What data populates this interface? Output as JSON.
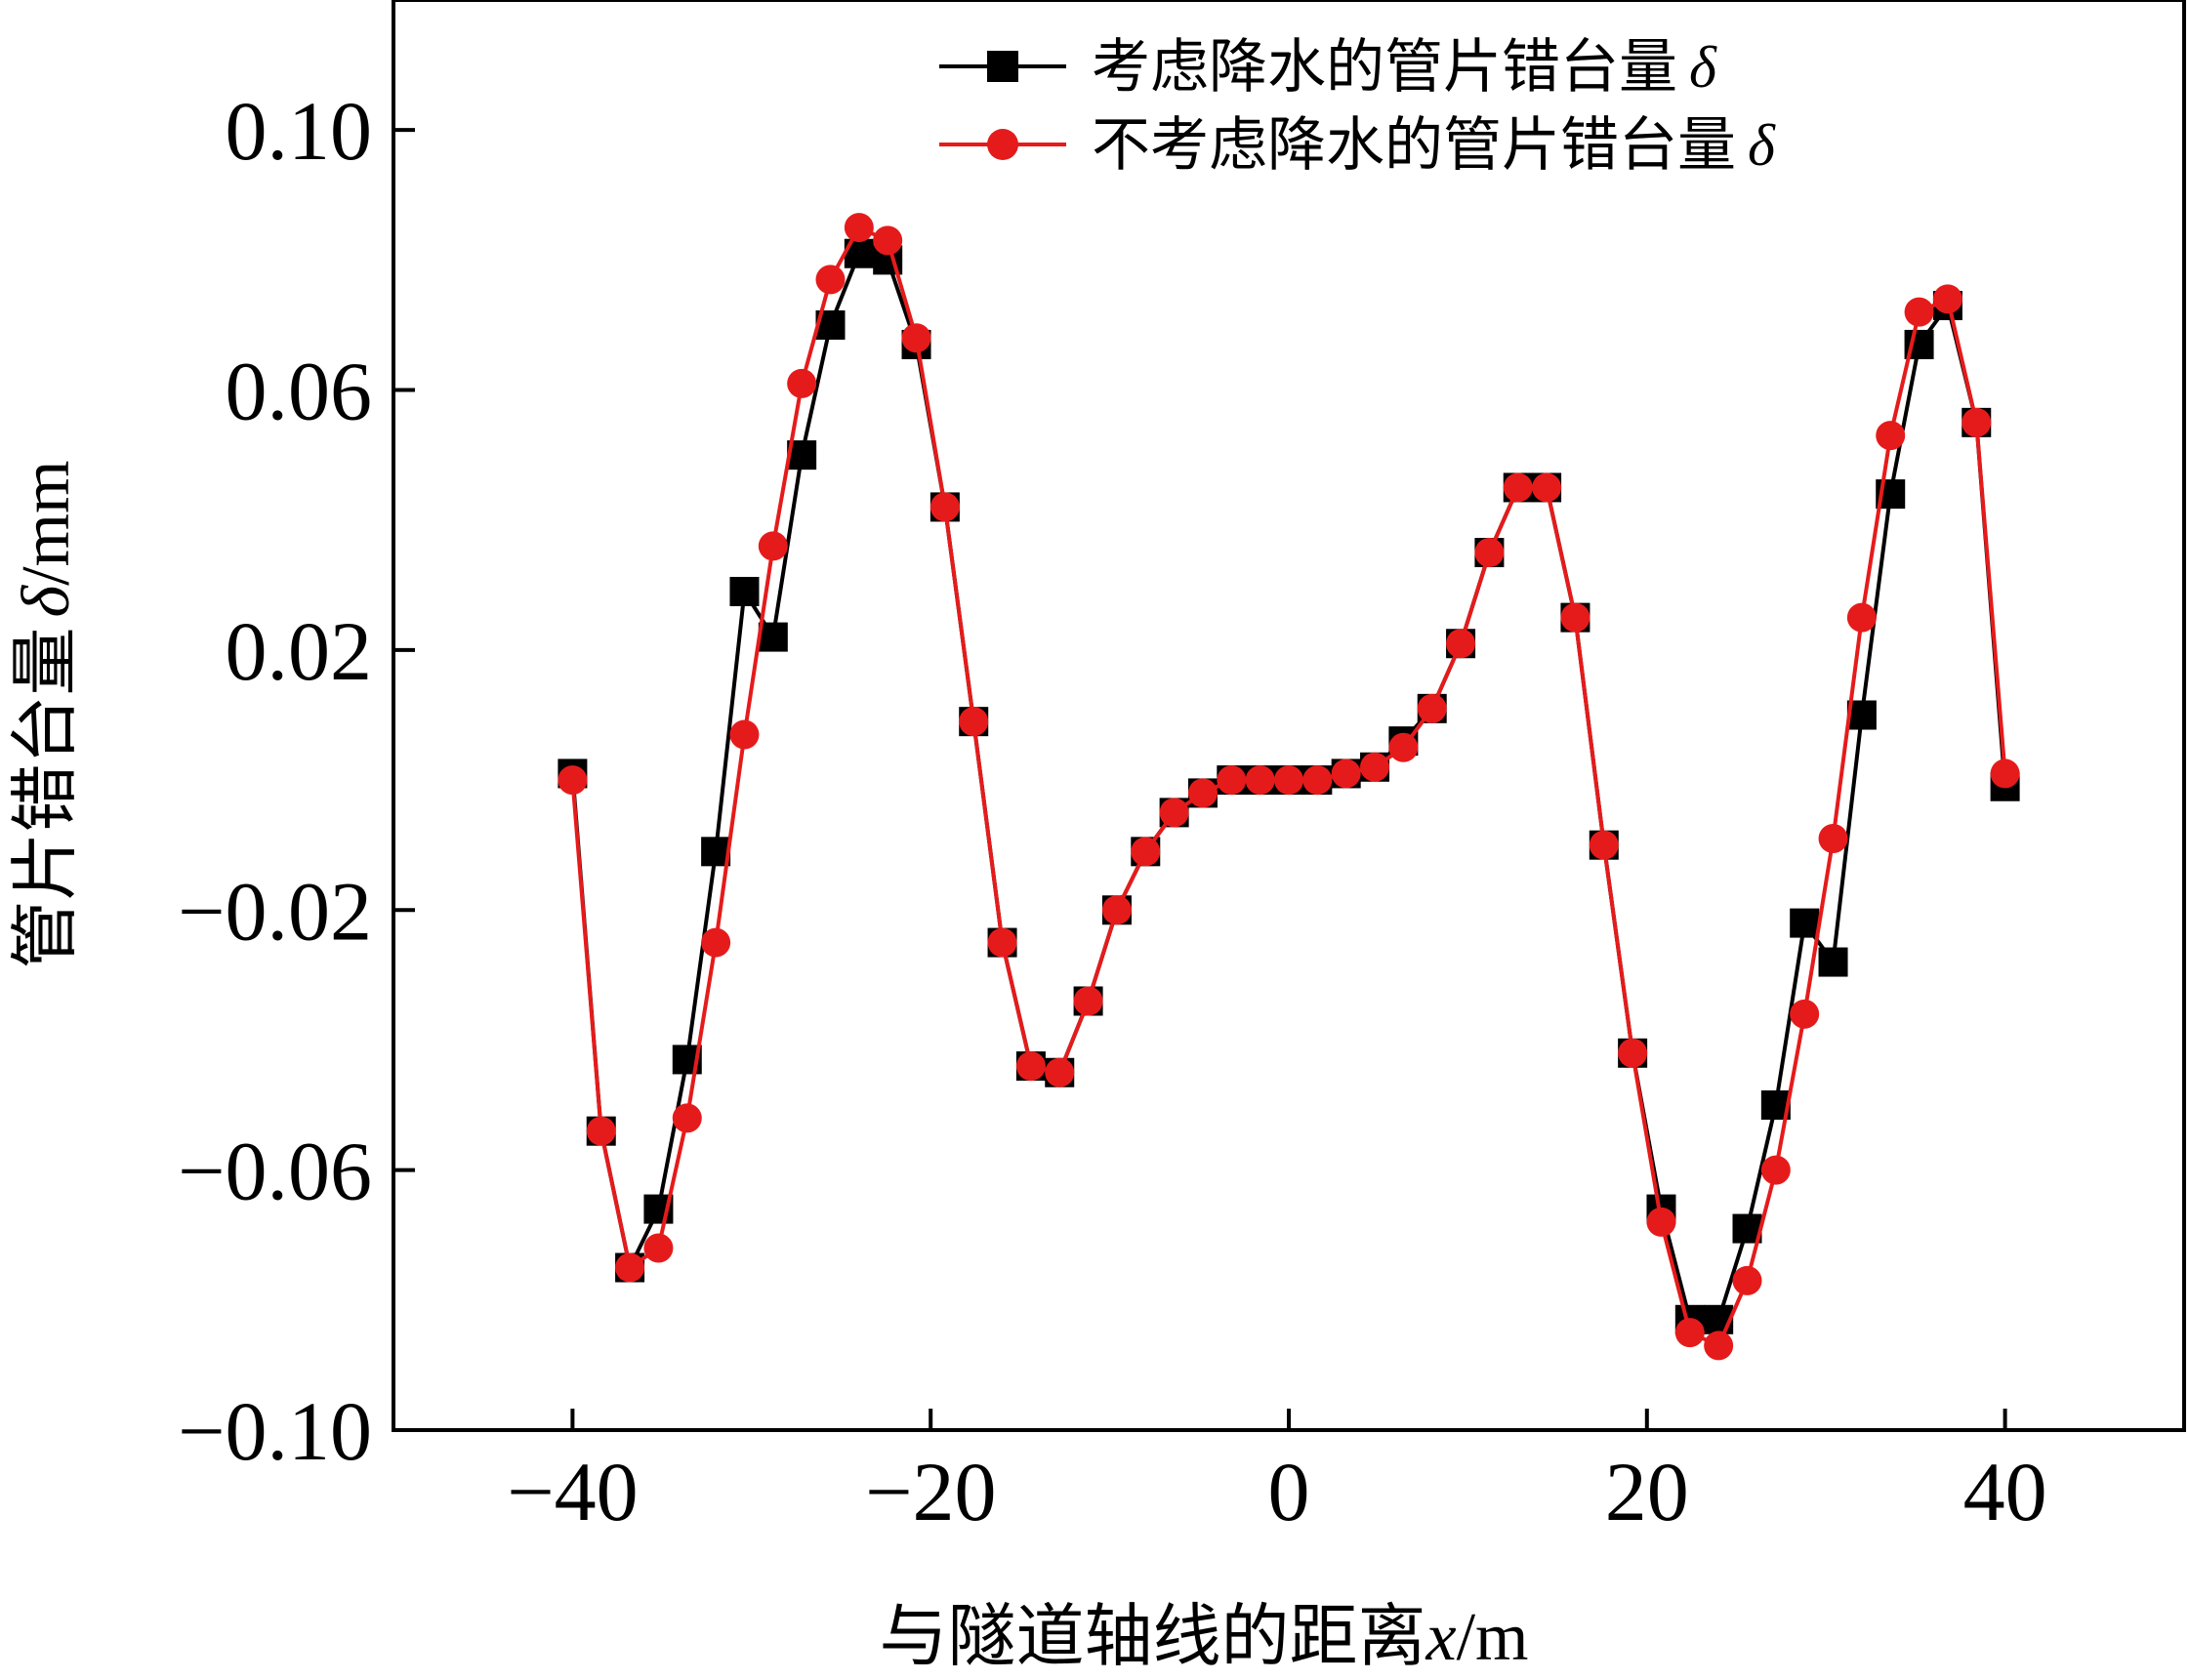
{
  "chart_data": {
    "type": "line",
    "title": "",
    "xlabel": {
      "main": "与隧道轴线的距离",
      "var": "x",
      "unit": "/m"
    },
    "ylabel": {
      "main": "管片错台量",
      "var": "δ",
      "unit": "/mm"
    },
    "xlim": [
      -50,
      50
    ],
    "ylim": [
      -0.1,
      0.12
    ],
    "xticks": [
      -40,
      -20,
      0,
      20,
      40
    ],
    "xtick_labels": [
      "−40",
      "−20",
      "0",
      "20",
      "40"
    ],
    "yticks": [
      -0.1,
      -0.06,
      -0.02,
      0.02,
      0.06,
      0.1
    ],
    "ytick_labels": [
      "−0.10",
      "−0.06",
      "−0.02",
      "0.02",
      "0.06",
      "0.10"
    ],
    "grid": false,
    "legend_position": "top-right",
    "series": [
      {
        "name": "考虑降水的管片错台量",
        "name_symbol": "δ",
        "color": "#000000",
        "marker": "square",
        "x": [
          -40,
          -38.4,
          -36.8,
          -35.2,
          -33.6,
          -32,
          -30.4,
          -28.8,
          -27.2,
          -25.6,
          -24,
          -22.4,
          -20.8,
          -19.2,
          -17.6,
          -16,
          -14.4,
          -12.8,
          -11.2,
          -9.6,
          -8,
          -6.4,
          -4.8,
          -3.2,
          -1.6,
          0,
          1.6,
          3.2,
          4.8,
          6.4,
          8,
          9.6,
          11.2,
          12.8,
          14.4,
          16,
          17.6,
          19.2,
          20.8,
          22.4,
          24,
          25.6,
          27.2,
          28.8,
          30.4,
          32,
          33.6,
          35.2,
          36.8,
          38.4,
          40
        ],
        "values": [
          0.001,
          -0.054,
          -0.075,
          -0.066,
          -0.043,
          -0.011,
          0.029,
          0.022,
          0.05,
          0.07,
          0.081,
          0.08,
          0.067,
          0.042,
          0.009,
          -0.025,
          -0.044,
          -0.045,
          -0.034,
          -0.02,
          -0.011,
          -0.005,
          -0.002,
          0.0,
          0.0,
          0.0,
          0.0,
          0.001,
          0.002,
          0.006,
          0.011,
          0.021,
          0.035,
          0.045,
          0.045,
          0.025,
          -0.01,
          -0.042,
          -0.066,
          -0.083,
          -0.083,
          -0.069,
          -0.05,
          -0.022,
          -0.028,
          0.01,
          0.044,
          0.067,
          0.073,
          0.055,
          -0.001
        ]
      },
      {
        "name": "不考虑降水的管片错台量",
        "name_symbol": "δ",
        "color": "#e51b1b",
        "marker": "circle",
        "x": [
          -40,
          -38.4,
          -36.8,
          -35.2,
          -33.6,
          -32,
          -30.4,
          -28.8,
          -27.2,
          -25.6,
          -24,
          -22.4,
          -20.8,
          -19.2,
          -17.6,
          -16,
          -14.4,
          -12.8,
          -11.2,
          -9.6,
          -8,
          -6.4,
          -4.8,
          -3.2,
          -1.6,
          0,
          1.6,
          3.2,
          4.8,
          6.4,
          8,
          9.6,
          11.2,
          12.8,
          14.4,
          16,
          17.6,
          19.2,
          20.8,
          22.4,
          24,
          25.6,
          27.2,
          28.8,
          30.4,
          32,
          33.6,
          35.2,
          36.8,
          38.4,
          40
        ],
        "values": [
          0.0,
          -0.054,
          -0.075,
          -0.072,
          -0.052,
          -0.025,
          0.007,
          0.036,
          0.061,
          0.077,
          0.085,
          0.083,
          0.068,
          0.042,
          0.009,
          -0.025,
          -0.044,
          -0.045,
          -0.034,
          -0.02,
          -0.011,
          -0.005,
          -0.002,
          0.0,
          0.0,
          0.0,
          0.0,
          0.001,
          0.002,
          0.005,
          0.011,
          0.021,
          0.035,
          0.045,
          0.045,
          0.025,
          -0.01,
          -0.042,
          -0.068,
          -0.085,
          -0.087,
          -0.077,
          -0.06,
          -0.036,
          -0.009,
          0.025,
          0.053,
          0.072,
          0.074,
          0.055,
          0.001
        ]
      }
    ]
  }
}
